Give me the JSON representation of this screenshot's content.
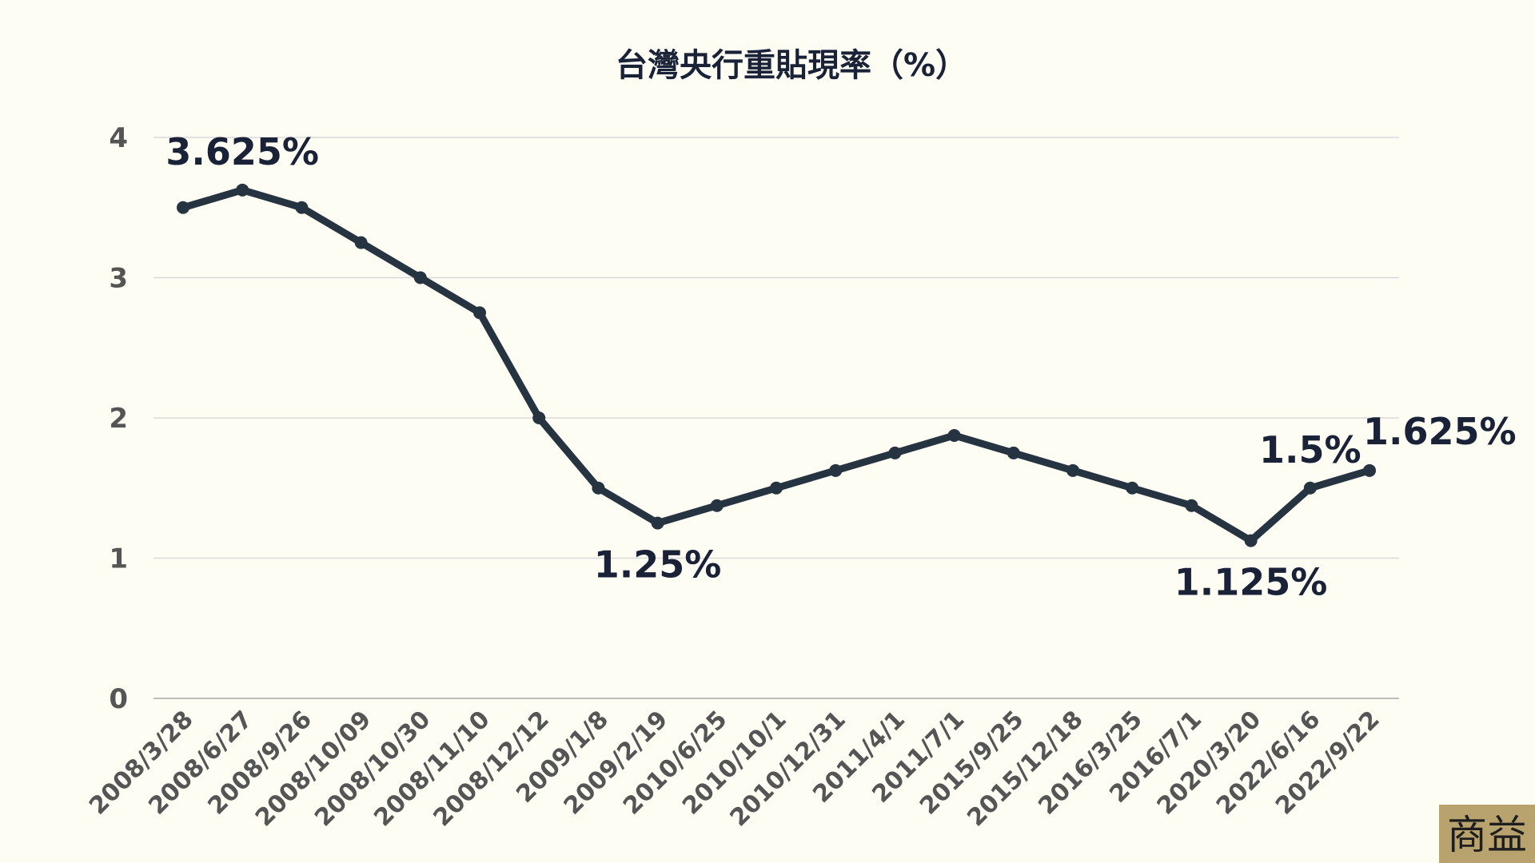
{
  "chart_data": {
    "type": "line",
    "title": "台灣央行重貼現率（%）",
    "xlabel": "",
    "ylabel": "",
    "ylim": [
      0,
      4
    ],
    "yticks": [
      0,
      1,
      2,
      3,
      4
    ],
    "grid": true,
    "categories": [
      "2008/3/28",
      "2008/6/27",
      "2008/9/26",
      "2008/10/09",
      "2008/10/30",
      "2008/11/10",
      "2008/12/12",
      "2009/1/8",
      "2009/2/19",
      "2010/6/25",
      "2010/10/1",
      "2010/12/31",
      "2011/4/1",
      "2011/7/1",
      "2015/9/25",
      "2015/12/18",
      "2016/3/25",
      "2016/7/1",
      "2020/3/20",
      "2022/6/16",
      "2022/9/22"
    ],
    "series": [
      {
        "values": [
          3.5,
          3.625,
          3.5,
          3.25,
          3.0,
          2.75,
          2.0,
          1.5,
          1.25,
          1.375,
          1.5,
          1.625,
          1.75,
          1.875,
          1.75,
          1.625,
          1.5,
          1.375,
          1.125,
          1.5,
          1.625
        ]
      }
    ],
    "annotations": [
      {
        "index": 1,
        "text": "3.625%",
        "position": "above"
      },
      {
        "index": 8,
        "text": "1.25%",
        "position": "below"
      },
      {
        "index": 18,
        "text": "1.125%",
        "position": "below"
      },
      {
        "index": 19,
        "text": "1.5%",
        "position": "above"
      },
      {
        "index": 20,
        "text": "1.625%",
        "position": "above-right"
      }
    ],
    "colors": {
      "line": "#263340",
      "text": "#1a2238",
      "background": "#fdfdf3"
    }
  },
  "logo": {
    "text": "商益",
    "background": "#b8a36e"
  }
}
